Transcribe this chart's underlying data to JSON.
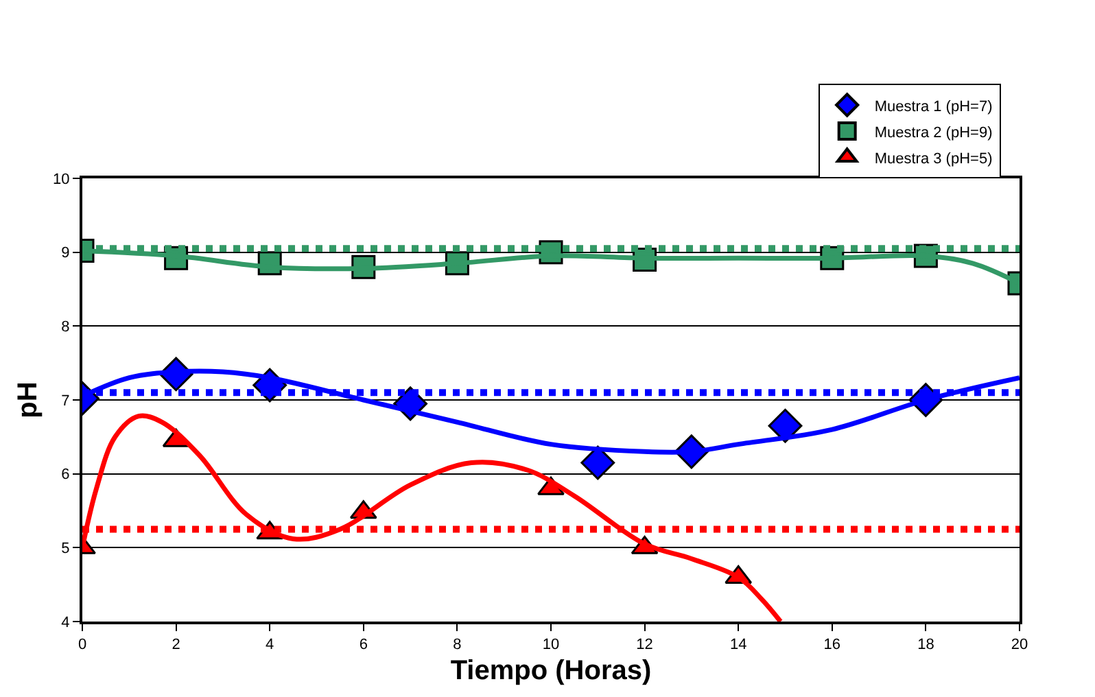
{
  "chart_data": {
    "type": "scatter",
    "xlabel": "Tiempo (Horas)",
    "ylabel": "pH",
    "xlim": [
      0,
      20
    ],
    "xticks": [
      0,
      2,
      4,
      6,
      8,
      10,
      12,
      14,
      16,
      18,
      20
    ],
    "ylim": [
      4,
      10
    ],
    "yticks": [
      4,
      5,
      6,
      7,
      8,
      9,
      10
    ],
    "grid": "y",
    "legend": "top right",
    "series": [
      {
        "name": "Muestra 1 (pH=7)",
        "color": "#0000ff",
        "marker": "diamond",
        "x": [
          0,
          2,
          4,
          7,
          11,
          13,
          15,
          18
        ],
        "values": [
          7.02,
          7.35,
          7.2,
          6.95,
          6.15,
          6.3,
          6.65,
          7.0
        ]
      },
      {
        "name": "Muestra 2 (pH=9)",
        "color": "#339966",
        "marker": "square",
        "x": [
          0,
          2,
          4,
          6,
          8,
          10,
          12,
          16,
          18,
          20
        ],
        "values": [
          9.02,
          8.92,
          8.85,
          8.8,
          8.85,
          9.0,
          8.9,
          8.92,
          8.95,
          8.58
        ]
      },
      {
        "name": "Muestra 3 (pH=5)",
        "color": "#ff0000",
        "marker": "triangle",
        "x": [
          0,
          2,
          4,
          6,
          10,
          12,
          14
        ],
        "values": [
          5.0,
          6.45,
          5.2,
          5.48,
          5.8,
          5.0,
          4.6
        ]
      },
      {
        "type": "line",
        "color": "#0000ff",
        "x": [
          0,
          1,
          2,
          3,
          4,
          6,
          8,
          10,
          12,
          13,
          14,
          16,
          18,
          20
        ],
        "values": [
          7.05,
          7.3,
          7.38,
          7.38,
          7.3,
          7.0,
          6.7,
          6.4,
          6.3,
          6.3,
          6.4,
          6.6,
          7.0,
          7.3
        ]
      },
      {
        "type": "line",
        "color": "#339966",
        "x": [
          0,
          2,
          4,
          6,
          8,
          10,
          12,
          14,
          16,
          18,
          19,
          20
        ],
        "values": [
          9.02,
          8.95,
          8.8,
          8.78,
          8.85,
          8.95,
          8.92,
          8.92,
          8.92,
          8.95,
          8.85,
          8.58
        ]
      },
      {
        "type": "line",
        "color": "#ff0000",
        "x": [
          0,
          0.3,
          0.7,
          1.2,
          1.7,
          2.5,
          3.5,
          4.5,
          5.5,
          7,
          8.3,
          9.5,
          10.5,
          12,
          13,
          14,
          14.5,
          14.9
        ],
        "values": [
          5.0,
          5.8,
          6.5,
          6.78,
          6.7,
          6.25,
          5.45,
          5.12,
          5.25,
          5.85,
          6.15,
          6.05,
          5.7,
          5.05,
          4.85,
          4.6,
          4.3,
          4.0
        ]
      }
    ],
    "ref_lines": [
      {
        "axis": "y",
        "value": 9.05,
        "color": "#339966",
        "line_style": "dotted"
      },
      {
        "axis": "y",
        "value": 7.1,
        "color": "#0000ff",
        "line_style": "dotted"
      },
      {
        "axis": "y",
        "value": 5.25,
        "color": "#ff0000",
        "line_style": "dotted"
      }
    ]
  }
}
